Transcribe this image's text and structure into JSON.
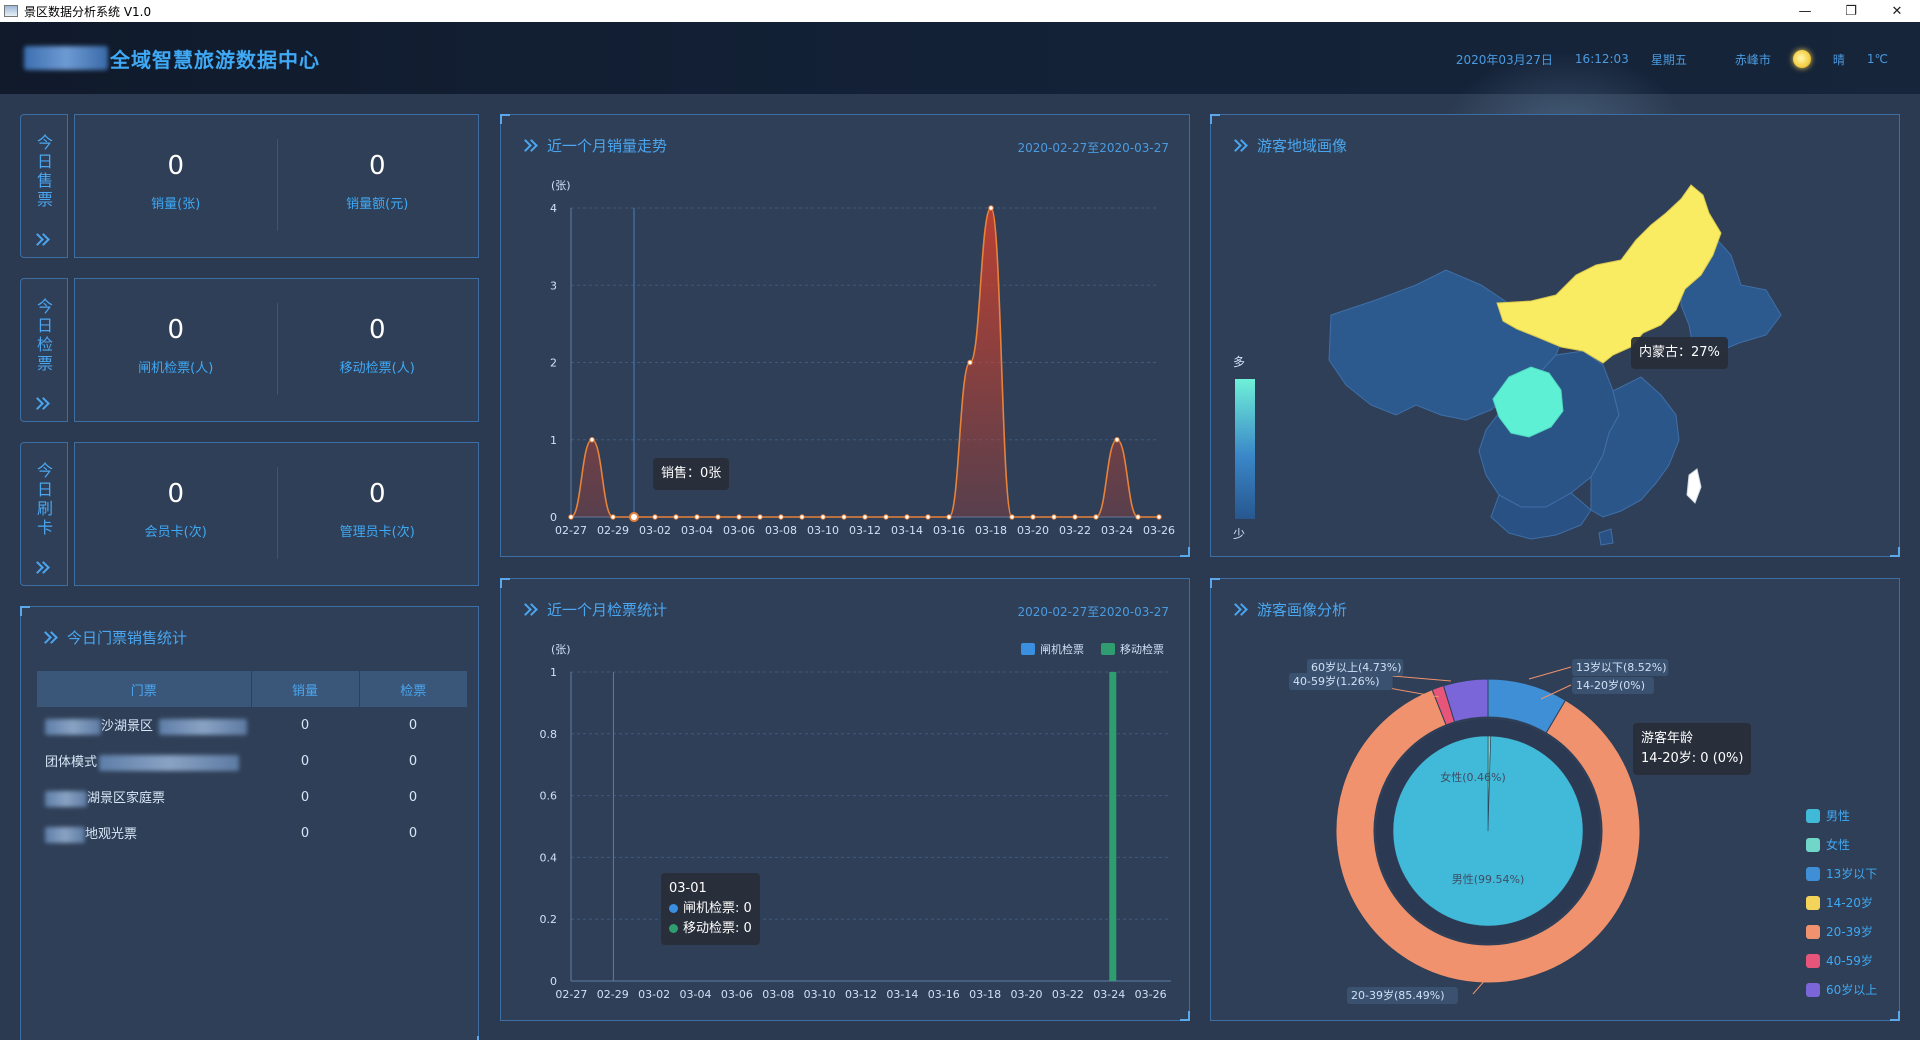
{
  "window": {
    "title": "景区数据分析系统 V1.0"
  },
  "header": {
    "title": "全域智慧旅游数据中心",
    "date": "2020年03月27日",
    "time": "16:12:03",
    "weekday": "星期五",
    "city": "赤峰市",
    "weather": "晴",
    "temperature": "1℃"
  },
  "today_sales": {
    "tag": "今日售票",
    "sales_count": "0",
    "sales_count_label": "销量(张)",
    "sales_amount": "0",
    "sales_amount_label": "销量额(元)"
  },
  "today_checks": {
    "tag": "今日检票",
    "gate": "0",
    "gate_label": "闸机检票(人)",
    "mobile": "0",
    "mobile_label": "移动检票(人)"
  },
  "today_cards": {
    "tag": "今日刷卡",
    "member": "0",
    "member_label": "会员卡(次)",
    "admin": "0",
    "admin_label": "管理员卡(次)"
  },
  "ticket_stats": {
    "title": "今日门票销售统计",
    "headers": [
      "门票",
      "销量",
      "检票"
    ],
    "rows": [
      {
        "name": "沙湖景区",
        "sold": "0",
        "checked": "0"
      },
      {
        "name": "团体模式",
        "sold": "0",
        "checked": "0"
      },
      {
        "name": "湖景区家庭票",
        "sold": "0",
        "checked": "0"
      },
      {
        "name": "地观光票",
        "sold": "0",
        "checked": "0"
      }
    ]
  },
  "sales_trend": {
    "title": "近一个月销量走势",
    "range": "2020-02-27至2020-03-27",
    "tooltip": "销售：0张"
  },
  "check_stats": {
    "title": "近一个月检票统计",
    "range": "2020-02-27至2020-03-27",
    "tooltip_date": "03-01",
    "tooltip_gate": "闸机检票: 0",
    "tooltip_mobile": "移动检票: 0"
  },
  "region": {
    "title": "游客地域画像",
    "scale_high": "多",
    "scale_low": "少",
    "tooltip": "内蒙古：27%"
  },
  "profile": {
    "title": "游客画像分析",
    "tooltip_title": "游客年龄",
    "tooltip_value": "14-20岁: 0 (0%)"
  },
  "chart_data": [
    {
      "type": "line",
      "title": "近一个月销量走势",
      "ylabel": "(张)",
      "ylim": [
        0,
        4
      ],
      "yticks": [
        "0",
        "1",
        "2",
        "3",
        "4"
      ],
      "x_ticks": [
        "02-27",
        "02-29",
        "03-02",
        "03-04",
        "03-06",
        "03-08",
        "03-10",
        "03-12",
        "03-14",
        "03-16",
        "03-18",
        "03-20",
        "03-22",
        "03-24",
        "03-26"
      ],
      "x": [
        "02-27",
        "02-28",
        "02-29",
        "03-01",
        "03-02",
        "03-03",
        "03-04",
        "03-05",
        "03-06",
        "03-07",
        "03-08",
        "03-09",
        "03-10",
        "03-11",
        "03-12",
        "03-13",
        "03-14",
        "03-15",
        "03-16",
        "03-17",
        "03-18",
        "03-19",
        "03-20",
        "03-21",
        "03-22",
        "03-23",
        "03-24",
        "03-25",
        "03-26"
      ],
      "values": [
        0,
        1,
        0,
        0,
        0,
        0,
        0,
        0,
        0,
        0,
        0,
        0,
        0,
        0,
        0,
        0,
        0,
        0,
        0,
        2,
        4,
        0,
        0,
        0,
        0,
        0,
        1,
        0,
        0
      ],
      "series": [
        {
          "name": "销售",
          "color": "#e7823a"
        }
      ],
      "grid": true
    },
    {
      "type": "bar",
      "title": "近一个月检票统计",
      "ylabel": "(张)",
      "ylim": [
        0,
        1
      ],
      "yticks": [
        "0",
        "0.2",
        "0.4",
        "0.6",
        "0.8",
        "1"
      ],
      "x_ticks": [
        "02-27",
        "02-29",
        "03-02",
        "03-04",
        "03-06",
        "03-08",
        "03-10",
        "03-12",
        "03-14",
        "03-16",
        "03-18",
        "03-20",
        "03-22",
        "03-24",
        "03-26"
      ],
      "x": [
        "02-27",
        "02-28",
        "02-29",
        "03-01",
        "03-02",
        "03-03",
        "03-04",
        "03-05",
        "03-06",
        "03-07",
        "03-08",
        "03-09",
        "03-10",
        "03-11",
        "03-12",
        "03-13",
        "03-14",
        "03-15",
        "03-16",
        "03-17",
        "03-18",
        "03-19",
        "03-20",
        "03-21",
        "03-22",
        "03-23",
        "03-24",
        "03-25",
        "03-26"
      ],
      "series": [
        {
          "name": "闸机检票",
          "color": "#3b8fe0",
          "values": [
            0,
            0,
            0,
            0,
            0,
            0,
            0,
            0,
            0,
            0,
            0,
            0,
            0,
            0,
            0,
            0,
            0,
            0,
            0,
            0,
            0,
            0,
            0,
            0,
            0,
            0,
            0,
            0,
            0
          ]
        },
        {
          "name": "移动检票",
          "color": "#2f9d70",
          "values": [
            0,
            0,
            0,
            0,
            0,
            0,
            0,
            0,
            0,
            0,
            0,
            0,
            0,
            0,
            0,
            0,
            0,
            0,
            0,
            0,
            0,
            0,
            0,
            0,
            0,
            0,
            1,
            0,
            0
          ]
        }
      ],
      "legend": "top-right",
      "grid": true
    },
    {
      "type": "pie",
      "title": "游客画像分析",
      "inner": [
        {
          "name": "男性",
          "label": "男性(99.54%)",
          "value": 99.54,
          "color": "#41b9d9"
        },
        {
          "name": "女性",
          "label": "女性(0.46%)",
          "value": 0.46,
          "color": "#6fd6c8"
        }
      ],
      "outer": [
        {
          "name": "13岁以下",
          "label": "13岁以下(8.52%)",
          "value": 8.52,
          "color": "#3f8fd6"
        },
        {
          "name": "14-20岁",
          "label": "14-20岁(0%)",
          "value": 0,
          "color": "#f4d35b"
        },
        {
          "name": "20-39岁",
          "label": "20-39岁(85.49%)",
          "value": 85.49,
          "color": "#f0926e"
        },
        {
          "name": "40-59岁",
          "label": "40-59岁(1.26%)",
          "value": 1.26,
          "color": "#e8557a"
        },
        {
          "name": "60岁以上",
          "label": "60岁以上(4.73%)",
          "value": 4.73,
          "color": "#7a66d8"
        }
      ],
      "legend": "right"
    }
  ],
  "icons": {
    "weather": "sun-icon",
    "section": "double-chevron-icon"
  }
}
